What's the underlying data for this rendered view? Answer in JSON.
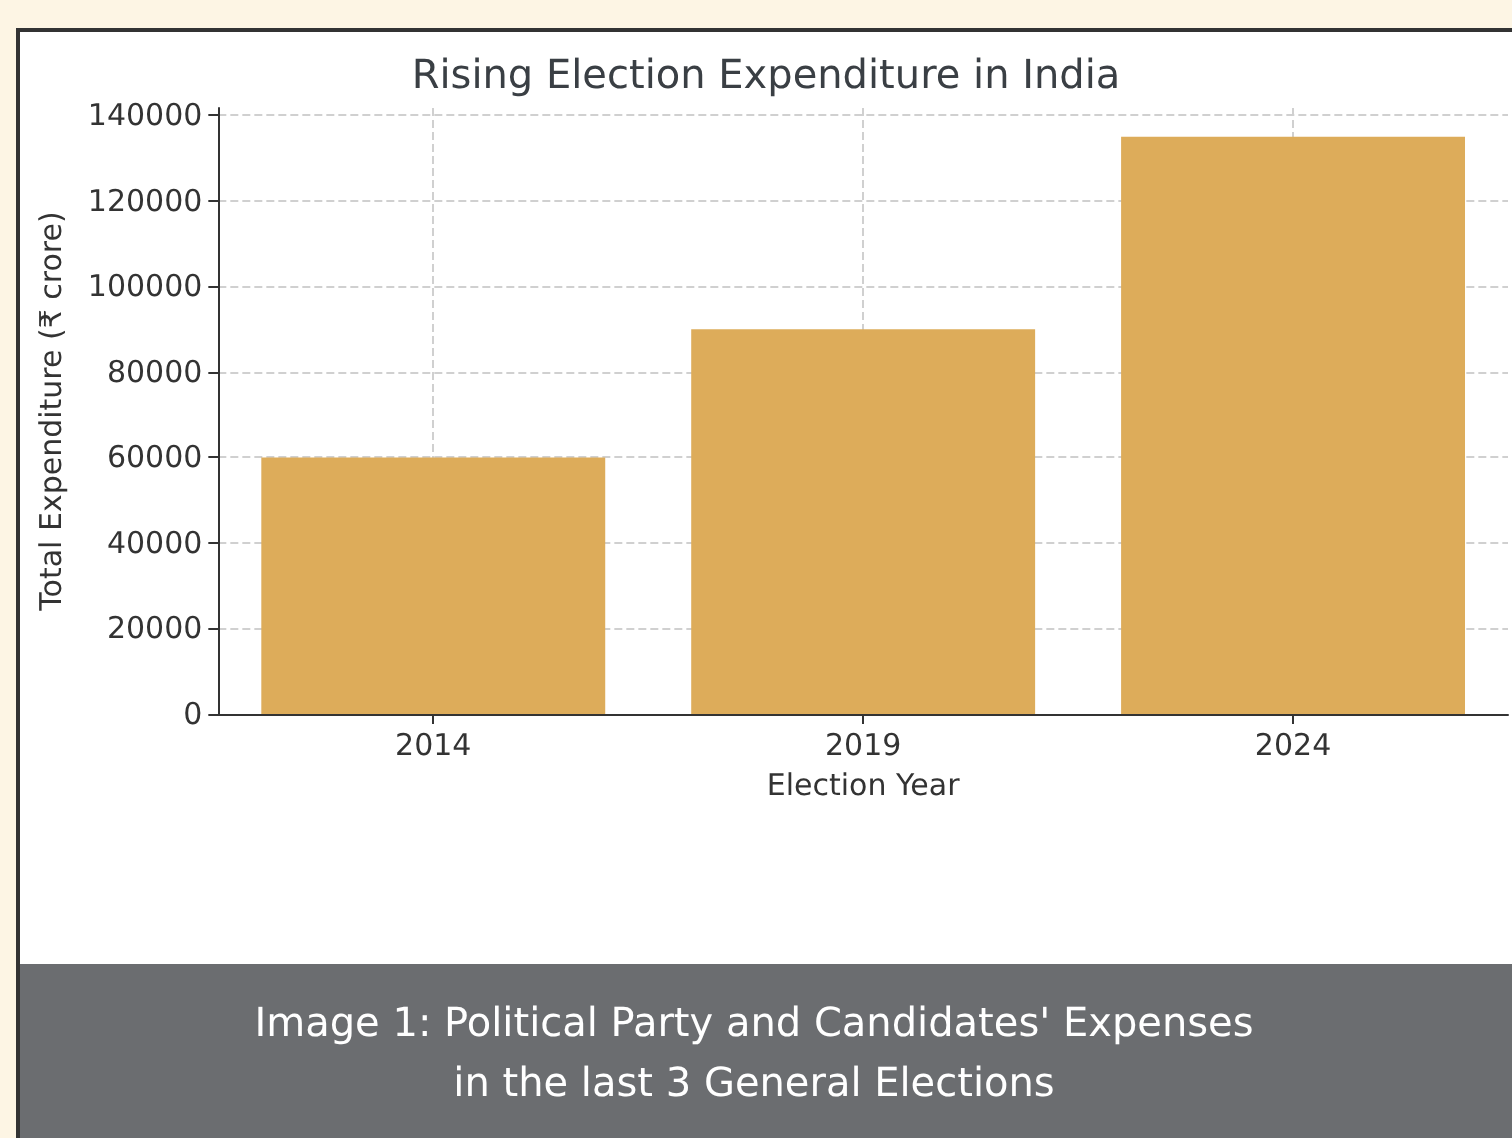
{
  "chart_data": {
    "type": "bar",
    "title": "Rising Election Expenditure in India",
    "xlabel": "Election Year",
    "ylabel": "Total Expenditure (₹ crore)",
    "categories": [
      "2014",
      "2019",
      "2024"
    ],
    "values": [
      60000,
      90000,
      135000
    ],
    "color": "#ddac5a",
    "ylim": [
      0,
      141750
    ],
    "yticks": [
      0,
      20000,
      40000,
      60000,
      80000,
      100000,
      120000,
      140000
    ],
    "grid": true,
    "annotations": [
      "Image 1: Political Party and Candidates' Expenses\nin the last 3 General Elections"
    ]
  }
}
